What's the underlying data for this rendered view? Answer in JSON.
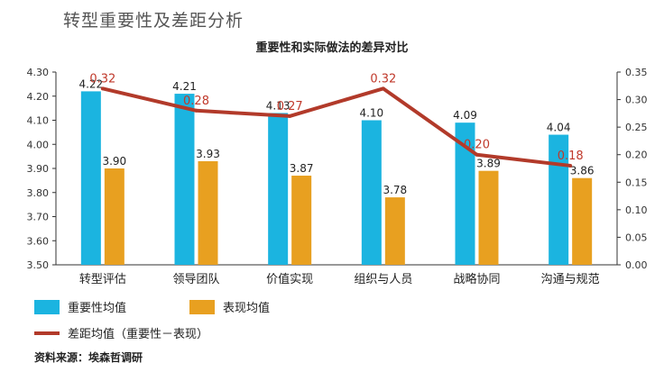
{
  "heading": "转型重要性及差距分析",
  "source_note": "资料来源：埃森哲调研",
  "colors": {
    "importance": "#1bb4e0",
    "performance": "#e8a020",
    "gap": "#b23a2a",
    "gap_label": "#c0392b"
  },
  "chart_data": {
    "type": "bar",
    "title": "重要性和实际做法的差异对比",
    "categories": [
      "转型评估",
      "领导团队",
      "价值实现",
      "组织与人员",
      "战略协同",
      "沟通与规范"
    ],
    "series": [
      {
        "name": "重要性均值",
        "kind": "bar",
        "axis": "left",
        "values": [
          4.22,
          4.21,
          4.13,
          4.1,
          4.09,
          4.04
        ],
        "labels": [
          "4.22",
          "4.21",
          "4.13",
          "4.10",
          "4.09",
          "4.04"
        ]
      },
      {
        "name": "表现均值",
        "kind": "bar",
        "axis": "left",
        "values": [
          3.9,
          3.93,
          3.87,
          3.78,
          3.89,
          3.86
        ],
        "labels": [
          "3.90",
          "3.93",
          "3.87",
          "3.78",
          "3.89",
          "3.86"
        ]
      },
      {
        "name": "差距均值（重要性－表现）",
        "kind": "line",
        "axis": "right",
        "values": [
          0.32,
          0.28,
          0.27,
          0.32,
          0.2,
          0.18
        ],
        "labels": [
          "0.32",
          "0.28",
          "0.27",
          "0.32",
          "0.20",
          "0.18"
        ]
      }
    ],
    "y_left": {
      "range": [
        3.5,
        4.3
      ],
      "ticks": [
        "4.30",
        "4.20",
        "4.10",
        "4.00",
        "3.90",
        "3.80",
        "3.70",
        "3.60",
        "3.50"
      ]
    },
    "y_right": {
      "range": [
        0,
        0.35
      ],
      "ticks": [
        "0.35",
        "0.30",
        "0.25",
        "0.20",
        "0.15",
        "0.10",
        "0.05",
        "0.00"
      ]
    },
    "grid": false,
    "legend_position": "bottom-left"
  }
}
